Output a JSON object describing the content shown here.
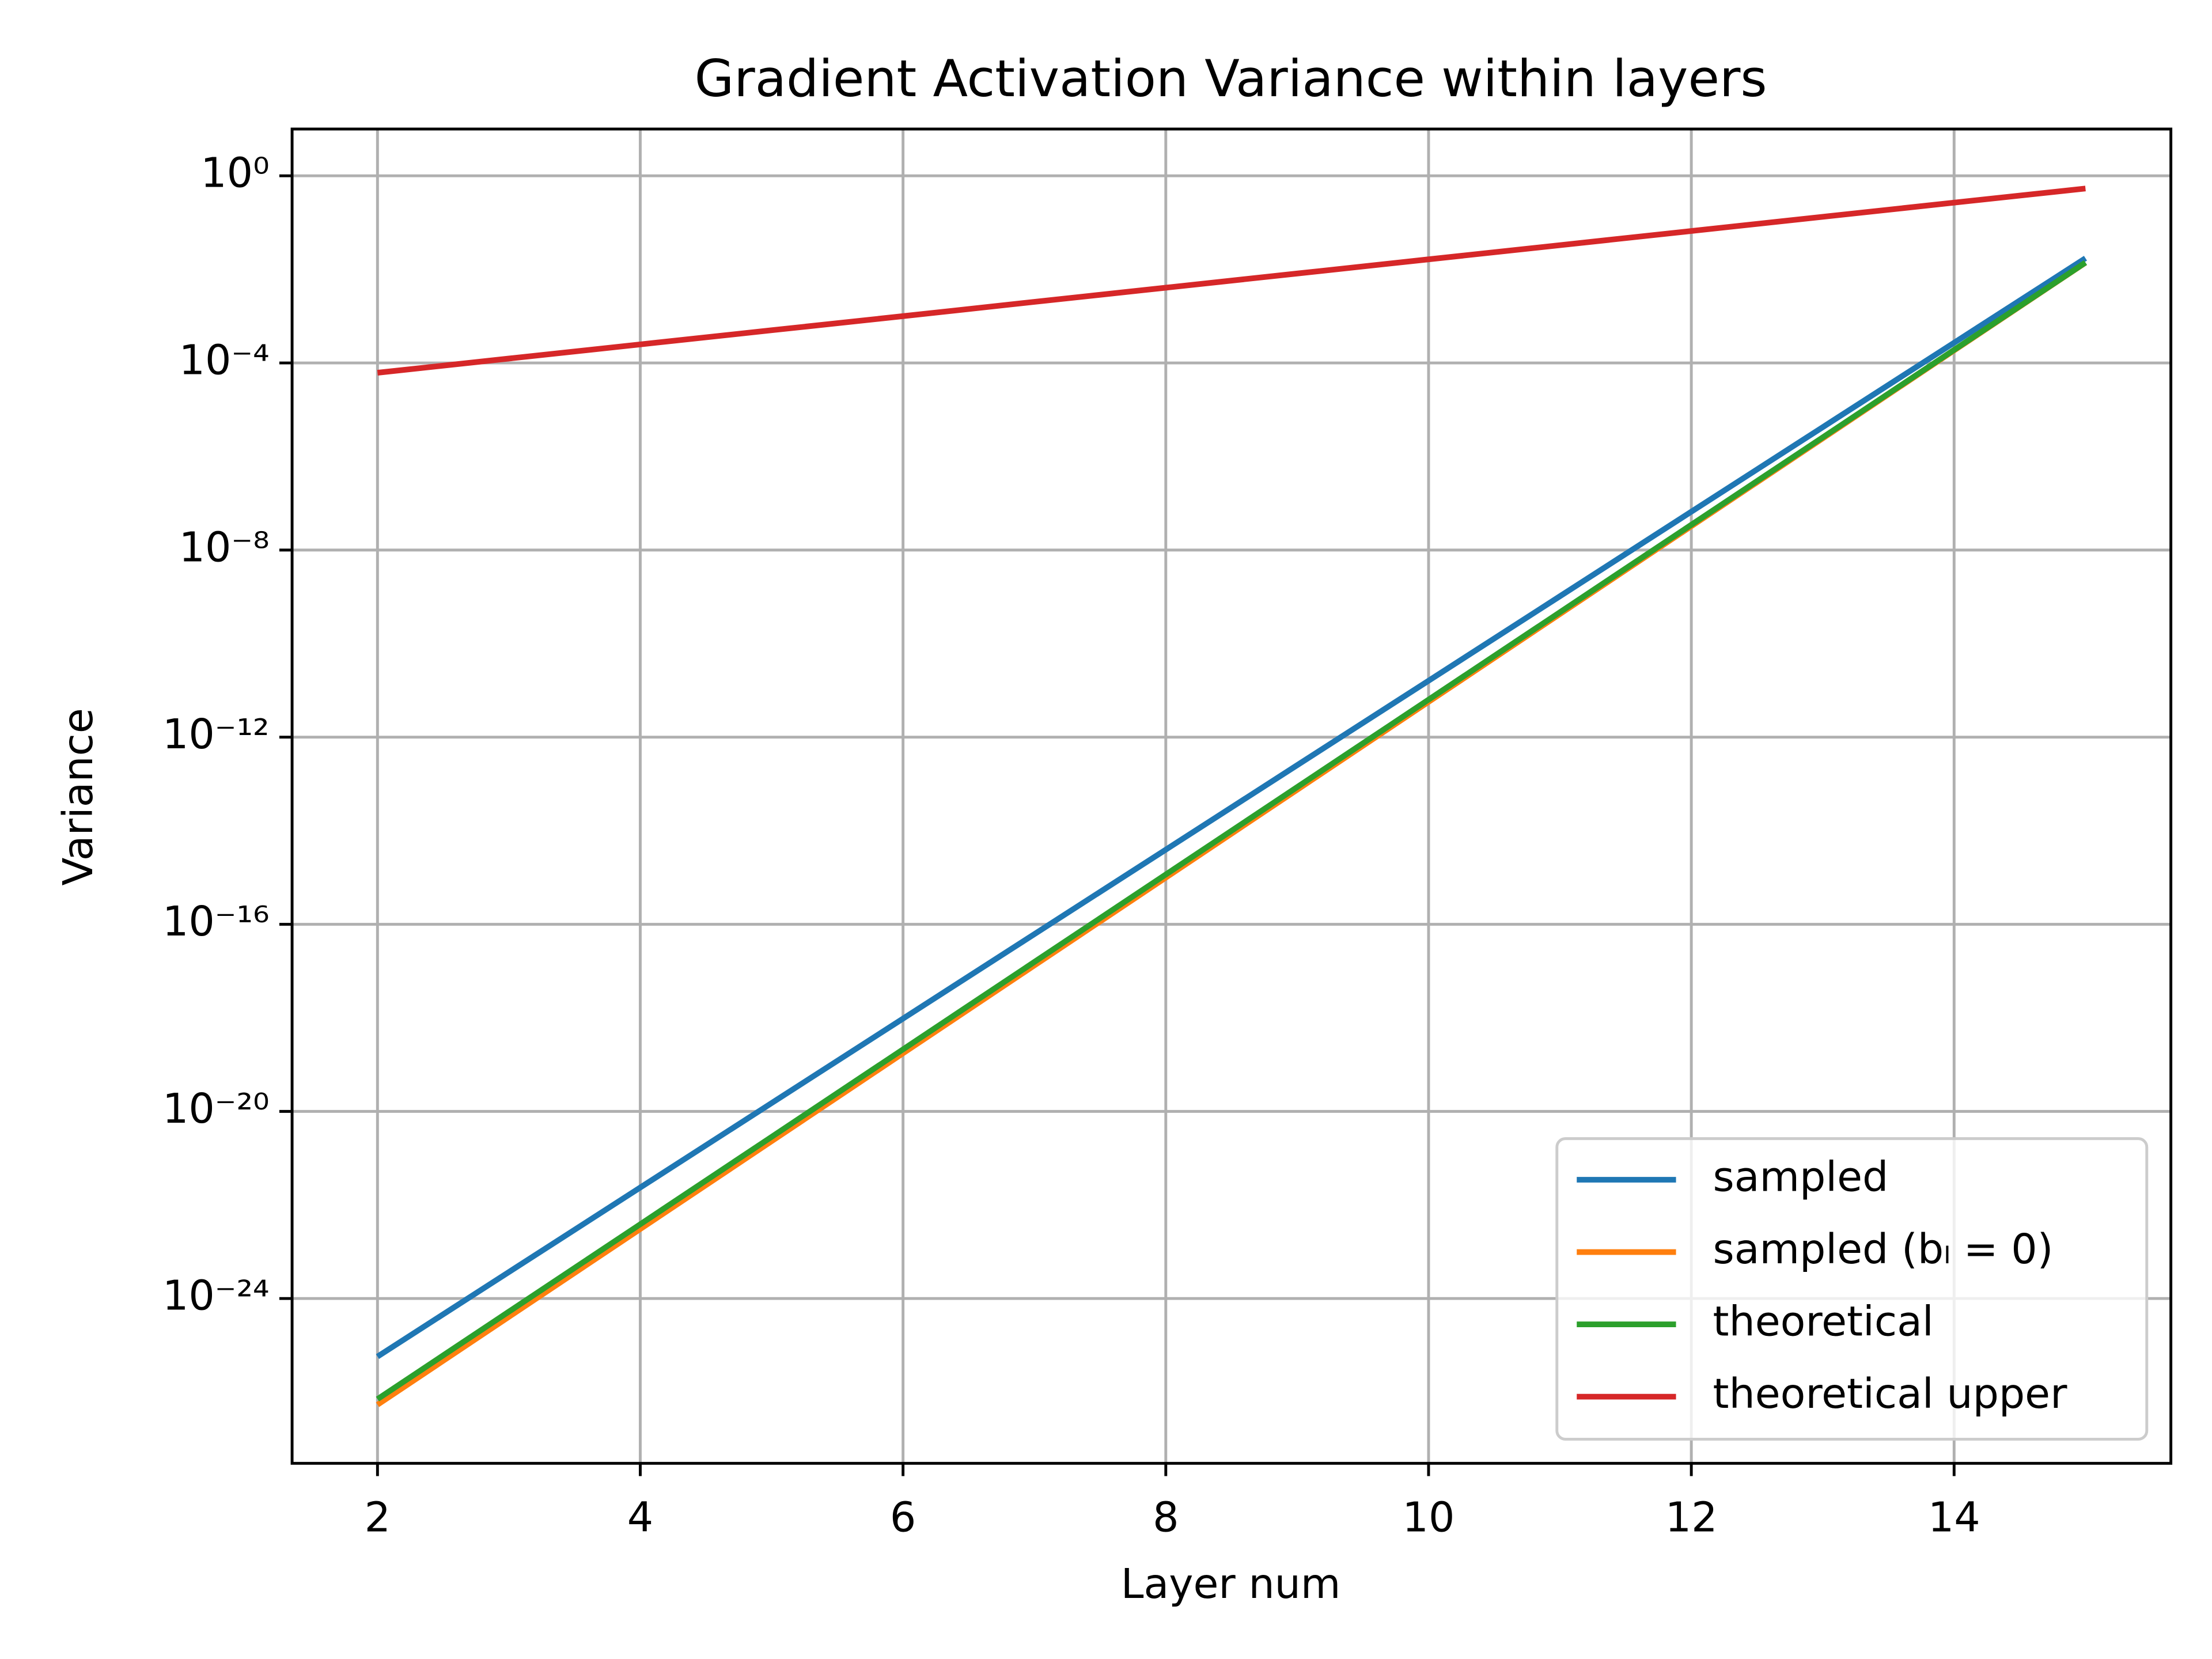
{
  "chart_data": {
    "type": "line",
    "title": "Gradient Activation Variance within layers",
    "x_label": "Layer num",
    "y_label": "Variance",
    "x": [
      2,
      3,
      4,
      5,
      6,
      7,
      8,
      9,
      10,
      11,
      12,
      13,
      14,
      15
    ],
    "series": [
      {
        "name": "sampled",
        "color": "#1f77b4",
        "values": [
          5.75e-26,
          3.68e-24,
          2.36e-22,
          1.51e-20,
          9.64e-19,
          6.17e-17,
          3.94e-15,
          2.52e-13,
          1.61e-11,
          1.03e-09,
          6.61e-08,
          4.23e-06,
          0.00027,
          0.0173
        ]
      },
      {
        "name": "sampled (bₗ = 0)",
        "color": "#ff7f0e",
        "values": [
          5.37e-27,
          4.06e-25,
          3.06e-23,
          2.31e-21,
          1.75e-19,
          1.32e-17,
          9.95e-16,
          7.52e-14,
          5.68e-12,
          4.29e-10,
          3.24e-08,
          2.44e-06,
          0.000185,
          0.0139
        ]
      },
      {
        "name": "theoretical",
        "color": "#2ca02c",
        "values": [
          7.08e-27,
          5.24e-25,
          3.87e-23,
          2.86e-21,
          2.12e-19,
          1.57e-17,
          1.16e-15,
          8.57e-14,
          6.34e-12,
          4.69e-10,
          3.47e-08,
          2.56e-06,
          0.00019,
          0.014
        ]
      },
      {
        "name": "theoretical upper",
        "color": "#d62728",
        "values": [
          6.17e-05,
          0.000124,
          0.000249,
          0.0005,
          0.001,
          0.00202,
          0.00406,
          0.00815,
          0.0164,
          0.0329,
          0.0661,
          0.133,
          0.267,
          0.536
        ]
      }
    ],
    "xlim": [
      1.35,
      15.65
    ],
    "xticks": [
      2,
      4,
      6,
      8,
      10,
      12,
      14
    ],
    "ylim": [
      3e-28,
      10
    ],
    "yticks": [
      {
        "value": 1,
        "label": "10⁰"
      },
      {
        "value": 0.0001,
        "label": "10⁻⁴"
      },
      {
        "value": 1e-08,
        "label": "10⁻⁸"
      },
      {
        "value": 1e-12,
        "label": "10⁻¹²"
      },
      {
        "value": 1e-16,
        "label": "10⁻¹⁶"
      },
      {
        "value": 1e-20,
        "label": "10⁻²⁰"
      },
      {
        "value": 1e-24,
        "label": "10⁻²⁴"
      }
    ],
    "y_scale": "log",
    "grid": true,
    "legend": "lower right"
  }
}
